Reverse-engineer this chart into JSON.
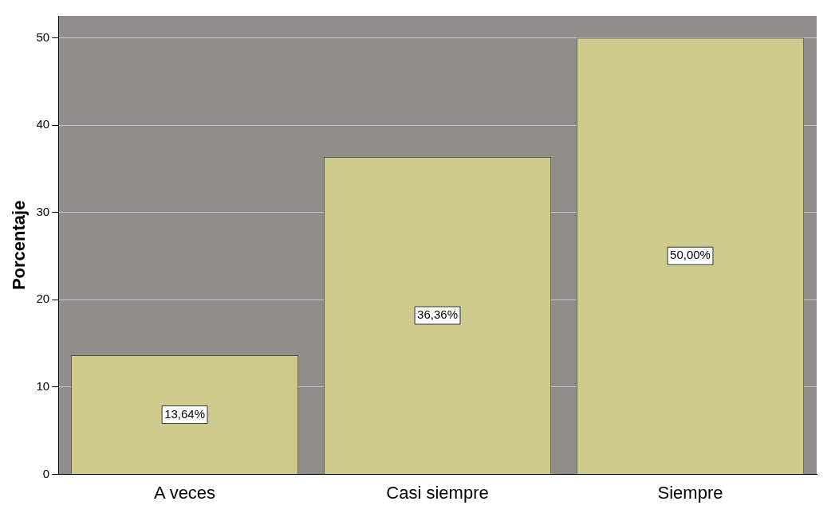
{
  "chart_data": {
    "type": "bar",
    "ylabel": "Porcentaje",
    "categories": [
      "A veces",
      "Casi siempre",
      "Siempre"
    ],
    "values": [
      13.64,
      36.36,
      50.0
    ],
    "value_labels": [
      "13,64%",
      "36,36%",
      "50,00%"
    ],
    "color": "#cfca8e",
    "ylim": [
      0,
      52.5
    ],
    "yticks": [
      0,
      10,
      20,
      30,
      40,
      50
    ],
    "grid": "y"
  }
}
